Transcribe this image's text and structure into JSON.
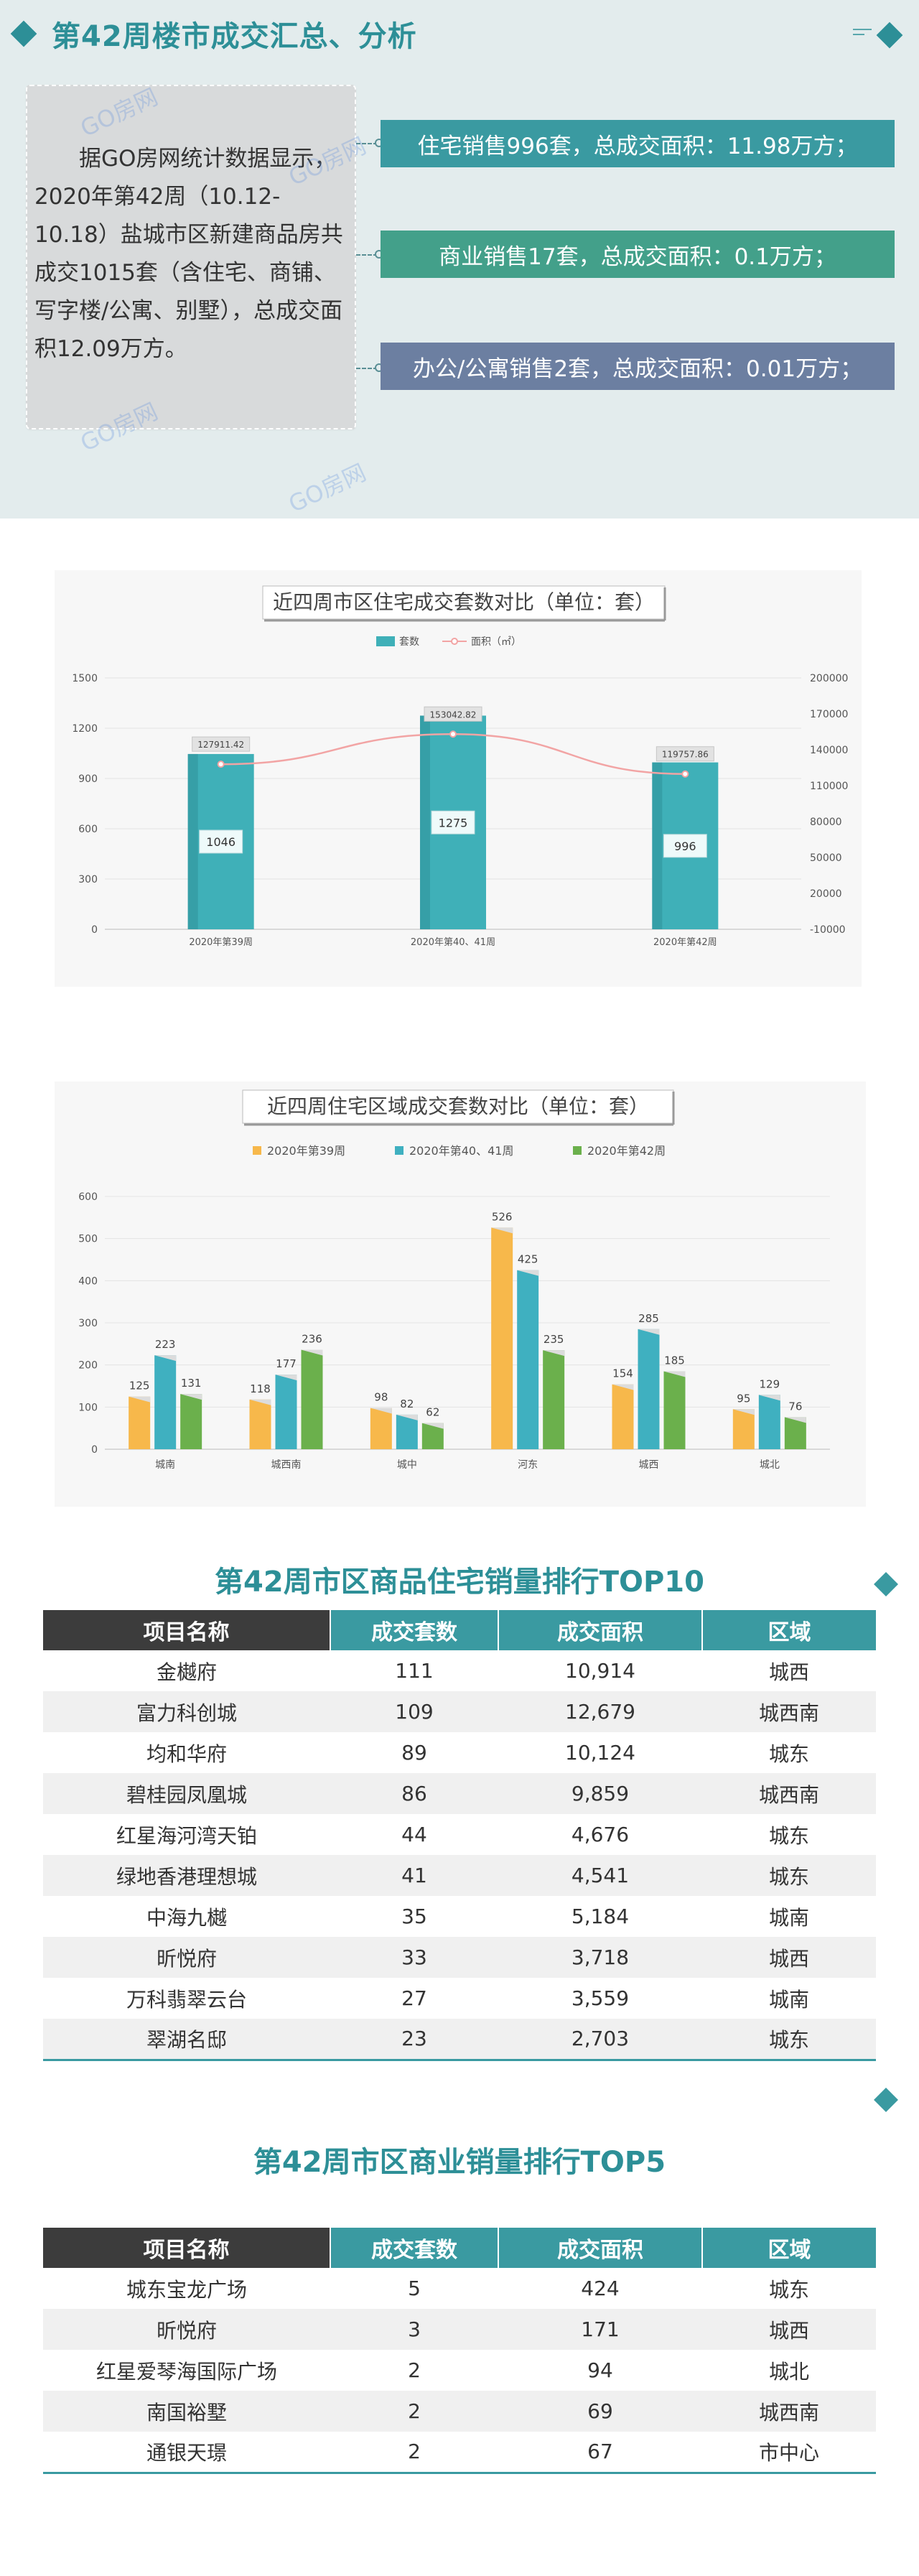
{
  "header": {
    "title": "第42周楼市成交汇总、分析",
    "summary": "据GO房网统计数据显示，2020年第42周（10.12-10.18）盐城市区新建商品房共成交1015套（含住宅、商铺、写字楼/公寓、别墅），总成交面积12.09万方。",
    "watermark": "GO房网",
    "stats": [
      {
        "text": "住宅销售996套，总成交面积：11.98万方；",
        "color": "#3a9aa1"
      },
      {
        "text": "商业销售17套，总成交面积：0.1万方；",
        "color": "#43a08a"
      },
      {
        "text": "办公/公寓销售2套，总成交面积：0.01万方；",
        "color": "#6c7fa1"
      }
    ]
  },
  "chart_residential": {
    "title": "近四周市区住宅成交套数对比（单位：套）",
    "chart_data": {
      "type": "bar",
      "categories": [
        "2020年第39周",
        "2020年第40、41周",
        "2020年第42周"
      ],
      "series": [
        {
          "name": "套数",
          "type": "bar",
          "axis": "left",
          "values": [
            1046,
            1275,
            996
          ],
          "color": "#3fb0b8"
        },
        {
          "name": "面积（㎡）",
          "type": "line",
          "axis": "right",
          "values": [
            127911.42,
            153042.82,
            119757.86
          ],
          "color": "#f2a4a4"
        }
      ],
      "ylim_left": [
        0,
        1500
      ],
      "yticks_left": [
        0,
        300,
        600,
        900,
        1200,
        1500
      ],
      "ylim_right": [
        -10000,
        200000
      ],
      "yticks_right": [
        -10000,
        20000,
        50000,
        80000,
        110000,
        140000,
        170000,
        200000
      ],
      "legend": "top-center",
      "grid": true
    }
  },
  "chart_district": {
    "title": "近四周住宅区域成交套数对比（单位：套）",
    "chart_data": {
      "type": "bar",
      "categories": [
        "城南",
        "城西南",
        "城中",
        "河东",
        "城西",
        "城北"
      ],
      "series": [
        {
          "name": "2020年第39周",
          "values": [
            125,
            118,
            98,
            526,
            154,
            95
          ],
          "color": "#f7b84b"
        },
        {
          "name": "2020年第40、41周",
          "values": [
            223,
            177,
            82,
            425,
            285,
            129
          ],
          "color": "#3fb0c0"
        },
        {
          "name": "2020年第42周",
          "values": [
            131,
            236,
            62,
            235,
            185,
            76
          ],
          "color": "#6bb04c"
        }
      ],
      "ylim": [
        0,
        600
      ],
      "yticks": [
        0,
        100,
        200,
        300,
        400,
        500,
        600
      ],
      "legend": "top-center",
      "grid": true
    }
  },
  "top10": {
    "title": "第42周市区商品住宅销量排行TOP10",
    "columns": [
      "项目名称",
      "成交套数",
      "成交面积",
      "区域"
    ],
    "rows": [
      [
        "金樾府",
        "111",
        "10,914",
        "城西"
      ],
      [
        "富力科创城",
        "109",
        "12,679",
        "城西南"
      ],
      [
        "均和华府",
        "89",
        "10,124",
        "城东"
      ],
      [
        "碧桂园凤凰城",
        "86",
        "9,859",
        "城西南"
      ],
      [
        "红星海河湾天铂",
        "44",
        "4,676",
        "城东"
      ],
      [
        "绿地香港理想城",
        "41",
        "4,541",
        "城东"
      ],
      [
        "中海九樾",
        "35",
        "5,184",
        "城南"
      ],
      [
        "昕悦府",
        "33",
        "3,718",
        "城西"
      ],
      [
        "万科翡翠云台",
        "27",
        "3,559",
        "城南"
      ],
      [
        "翠湖名邸",
        "23",
        "2,703",
        "城东"
      ]
    ]
  },
  "top5": {
    "title": "第42周市区商业销量排行TOP5",
    "columns": [
      "项目名称",
      "成交套数",
      "成交面积",
      "区域"
    ],
    "rows": [
      [
        "城东宝龙广场",
        "5",
        "424",
        "城东"
      ],
      [
        "昕悦府",
        "3",
        "171",
        "城西"
      ],
      [
        "红星爱琴海国际广场",
        "2",
        "94",
        "城北"
      ],
      [
        "南国裕墅",
        "2",
        "69",
        "城西南"
      ],
      [
        "通银天璟",
        "2",
        "67",
        "市中心"
      ]
    ]
  },
  "colors": {
    "accent": "#2d8f97",
    "header_dark": "#3c3c3c",
    "header_teal": "#3a9aa1"
  }
}
